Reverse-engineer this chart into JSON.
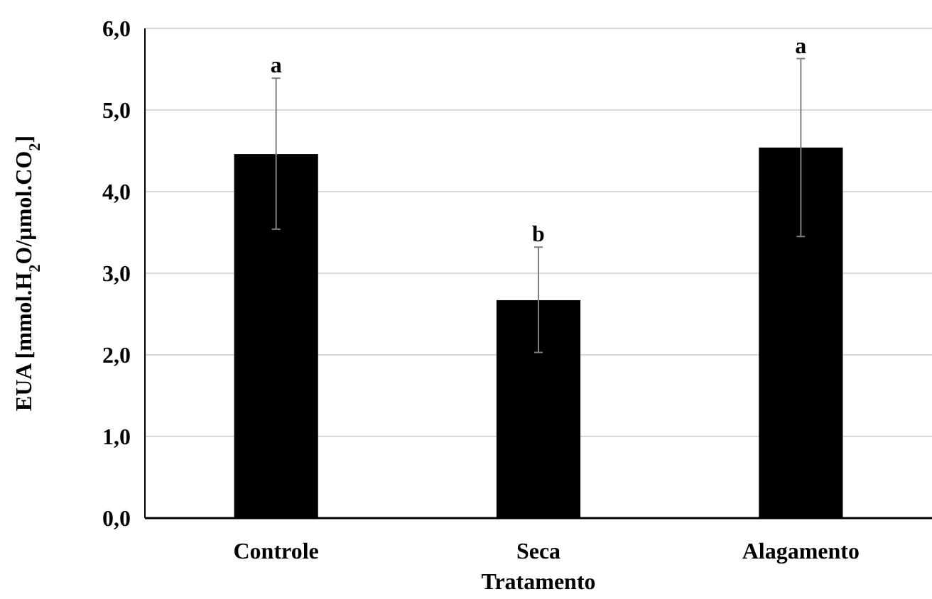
{
  "chart_data": {
    "type": "bar",
    "xlabel": "Tratamento",
    "ylabel": "EUA [mmol.H$_{2}$O/µmol.CO$_{2}$]",
    "categories": [
      "Controle",
      "Seca",
      "Alagamento"
    ],
    "values": [
      4.46,
      2.67,
      4.54
    ],
    "color": "#000000",
    "errors": [
      [
        3.54,
        5.39
      ],
      [
        2.03,
        3.32
      ],
      [
        3.45,
        5.63
      ]
    ],
    "annotations": [
      {
        "text": "a",
        "x": "Controle",
        "y": 5.39
      },
      {
        "text": "b",
        "x": "Seca",
        "y": 3.32
      },
      {
        "text": "a",
        "x": "Alagamento",
        "y": 5.63
      }
    ],
    "ylim": [
      0,
      6
    ],
    "yticks": [
      {
        "value": 0,
        "label": "0,0"
      },
      {
        "value": 1,
        "label": "1,0"
      },
      {
        "value": 2,
        "label": "2,0"
      },
      {
        "value": 3,
        "label": "3,0"
      },
      {
        "value": 4,
        "label": "4,0"
      },
      {
        "value": 5,
        "label": "5,0"
      },
      {
        "value": 6,
        "label": "6,0"
      }
    ],
    "grid": "y"
  }
}
